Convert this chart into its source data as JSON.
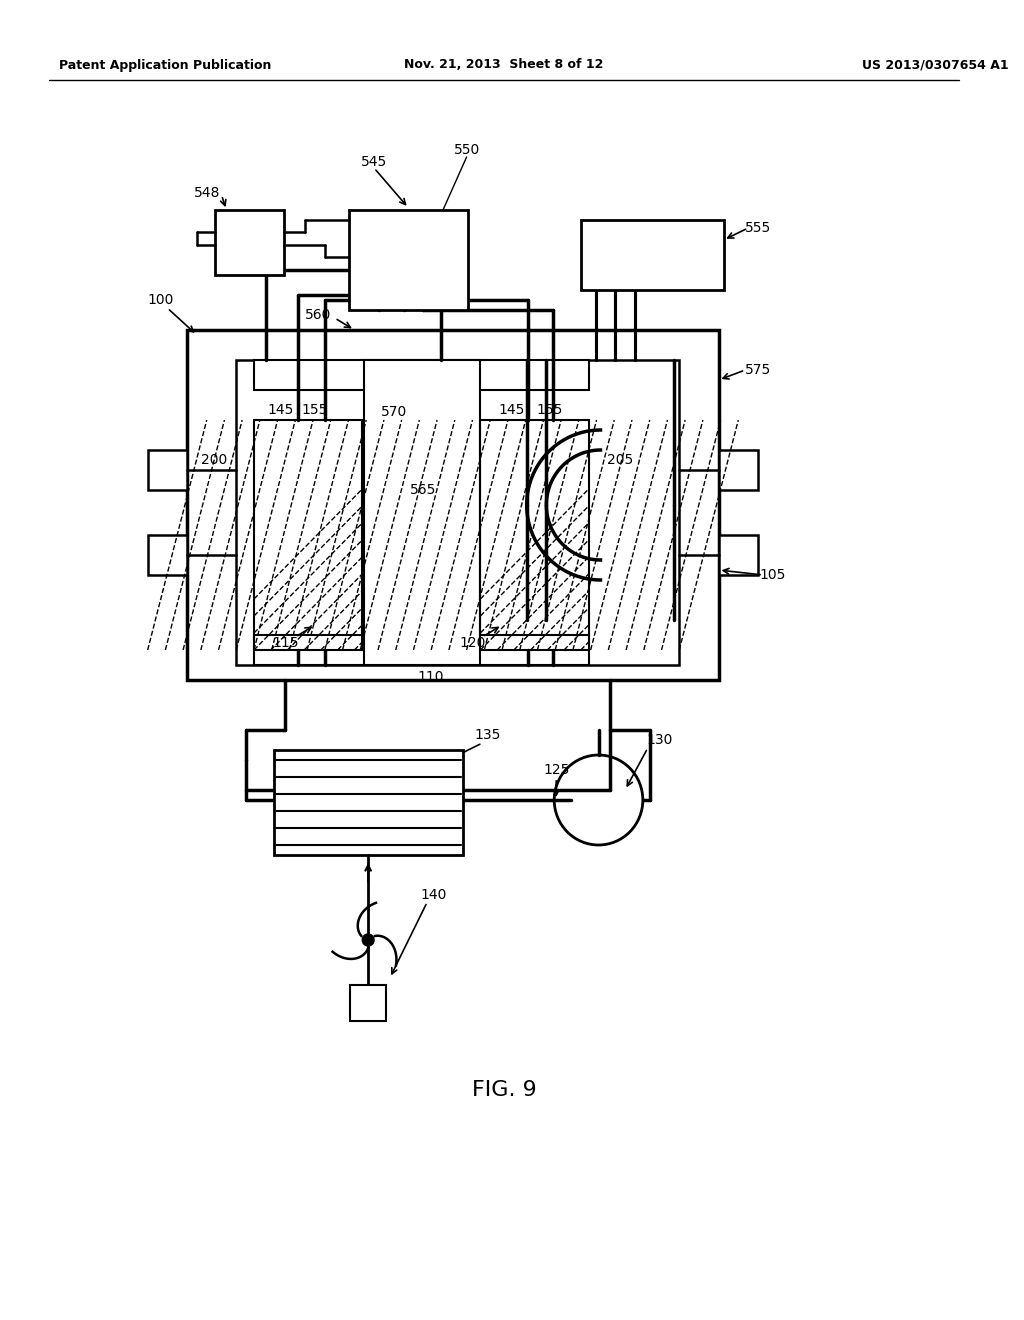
{
  "bg_color": "#ffffff",
  "line_color": "#000000",
  "header_left": "Patent Application Publication",
  "header_mid": "Nov. 21, 2013  Sheet 8 of 12",
  "header_right": "US 2013/0307654 A1",
  "fig_label": "FIG. 9"
}
